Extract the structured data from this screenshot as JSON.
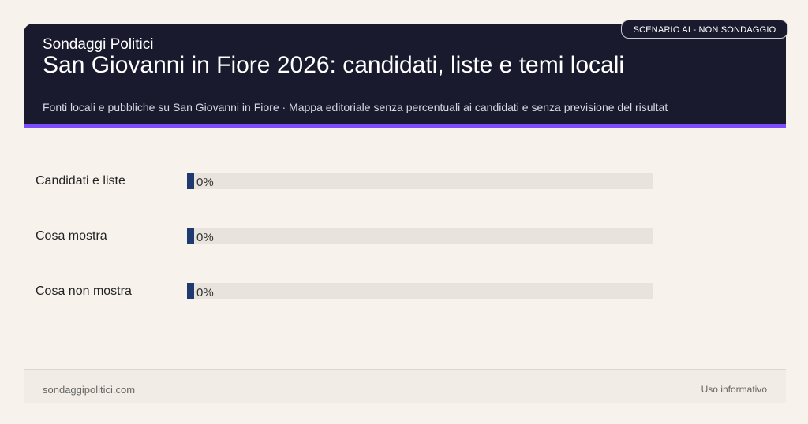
{
  "header": {
    "brand": "Sondaggi Politici",
    "title": "San Giovanni in Fiore 2026: candidati, liste e temi locali",
    "subtitle": "Fonti locali e pubbliche su San Giovanni in Fiore · Mappa editoriale senza percentuali ai candidati e senza previsione del risultat",
    "badge": "SCENARIO AI - NON SONDAGGIO"
  },
  "colors": {
    "header_bg": "#1a1a2e",
    "accent": "#7c4dff",
    "bar_fill": "#1e3a6e",
    "bar_track": "#e8e3dd",
    "page_bg": "#f7f2ec"
  },
  "chart_data": {
    "type": "bar",
    "orientation": "horizontal",
    "categories": [
      "Candidati e liste",
      "Cosa mostra",
      "Cosa non mostra"
    ],
    "values": [
      0,
      0,
      0
    ],
    "value_labels": [
      "0%",
      "0%",
      "0%"
    ],
    "xlim": [
      0,
      100
    ],
    "grid": false
  },
  "footer": {
    "site": "sondaggipolitici.com",
    "note": "Uso informativo"
  }
}
